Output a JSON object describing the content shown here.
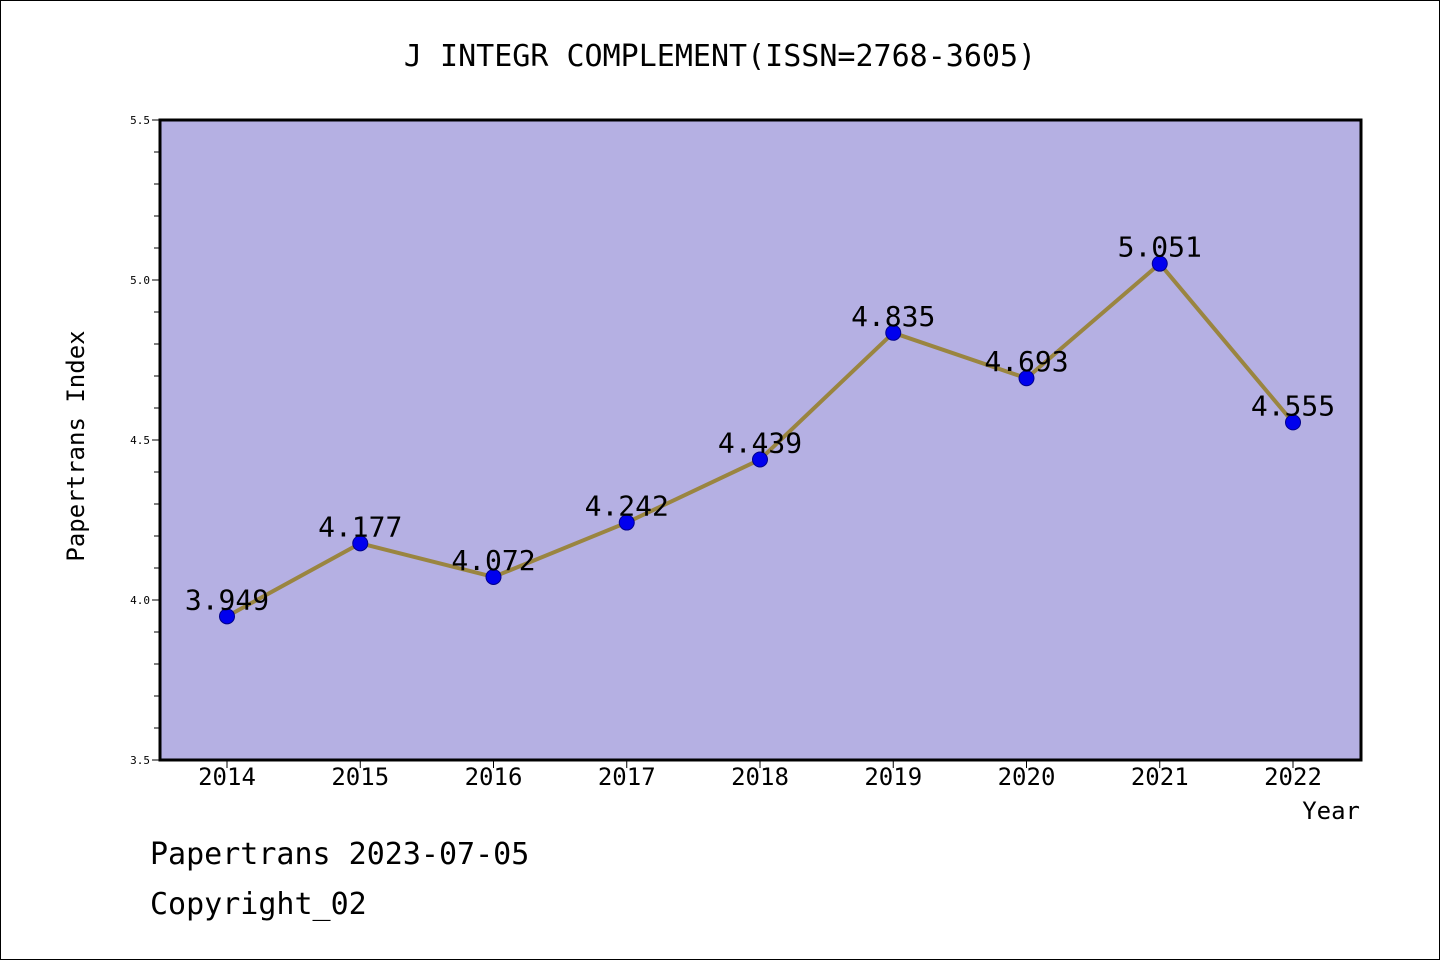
{
  "chart_data": {
    "type": "line",
    "title": "J INTEGR COMPLEMENT(ISSN=2768-3605)",
    "xlabel": "Year",
    "ylabel": "Papertrans Index",
    "categories": [
      "2014",
      "2015",
      "2016",
      "2017",
      "2018",
      "2019",
      "2020",
      "2021",
      "2022"
    ],
    "series": [
      {
        "values": [
          3.949,
          4.177,
          4.072,
          4.242,
          4.439,
          4.835,
          4.693,
          5.051,
          4.555
        ],
        "labels": [
          "3.949",
          "4.177",
          "4.072",
          "4.242",
          "4.439",
          "4.835",
          "4.693",
          "5.051",
          "4.555"
        ]
      }
    ],
    "ylim": [
      3.5,
      5.5
    ],
    "yticks": [
      "3.5",
      "4.0",
      "4.5",
      "5.0",
      "5.5"
    ],
    "grid": false,
    "legend": "none"
  },
  "footer": {
    "date_line": "Papertrans 2023-07-05",
    "copyright": "Copyright_02"
  },
  "colors": {
    "plot_background": "#b5b0e3",
    "line": "#9a8540",
    "marker_fill": "#0000ee",
    "marker_stroke": "#00008b",
    "frame": "#000000"
  }
}
